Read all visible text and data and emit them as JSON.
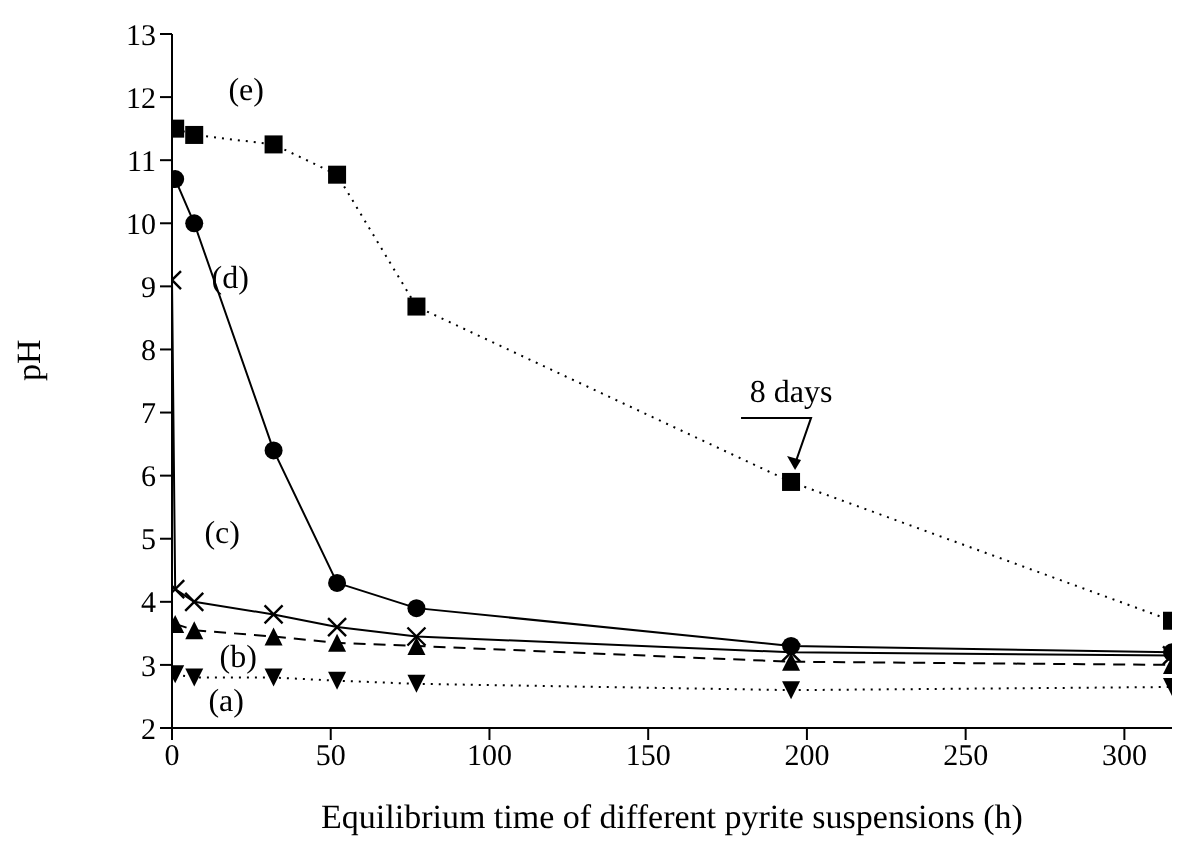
{
  "chart_data": {
    "type": "line",
    "xlabel": "Equilibrium time of different pyrite suspensions (h)",
    "ylabel": "pH",
    "xlim": [
      0,
      315
    ],
    "ylim": [
      2,
      13
    ],
    "xticks": [
      0,
      50,
      100,
      150,
      200,
      250,
      300
    ],
    "yticks": [
      2,
      3,
      4,
      5,
      6,
      7,
      8,
      9,
      10,
      11,
      12,
      13
    ],
    "series": [
      {
        "name": "(e)",
        "color": "#000000",
        "marker": "square",
        "line_style": "dotted",
        "x": [
          1,
          7,
          32,
          52,
          77,
          195,
          315
        ],
        "values": [
          11.5,
          11.4,
          11.25,
          10.77,
          8.68,
          5.9,
          3.7
        ]
      },
      {
        "name": "(d)",
        "color": "#000000",
        "marker": "circle",
        "line_style": "solid",
        "x": [
          1,
          7,
          32,
          52,
          77,
          195,
          315
        ],
        "values": [
          10.7,
          10.0,
          6.4,
          4.3,
          3.9,
          3.3,
          3.2
        ]
      },
      {
        "name": "(c)",
        "color": "#000000",
        "marker": "cross",
        "line_style": "solid",
        "x": [
          0,
          1,
          7,
          32,
          52,
          77,
          195,
          315
        ],
        "values": [
          9.1,
          4.2,
          4.0,
          3.8,
          3.6,
          3.45,
          3.2,
          3.15
        ]
      },
      {
        "name": "(b)",
        "color": "#000000",
        "marker": "triangle",
        "line_style": "dashed",
        "x": [
          1,
          7,
          32,
          52,
          77,
          195,
          315
        ],
        "values": [
          3.65,
          3.55,
          3.45,
          3.35,
          3.3,
          3.05,
          3.0
        ]
      },
      {
        "name": "(a)",
        "color": "#000000",
        "marker": "triangle-down",
        "line_style": "dotted",
        "x": [
          1,
          7,
          32,
          52,
          77,
          195,
          315
        ],
        "values": [
          2.85,
          2.8,
          2.8,
          2.75,
          2.7,
          2.6,
          2.65
        ]
      }
    ],
    "annotations": [
      {
        "text": "8 days",
        "x": 195,
        "y": 5.9
      }
    ]
  }
}
